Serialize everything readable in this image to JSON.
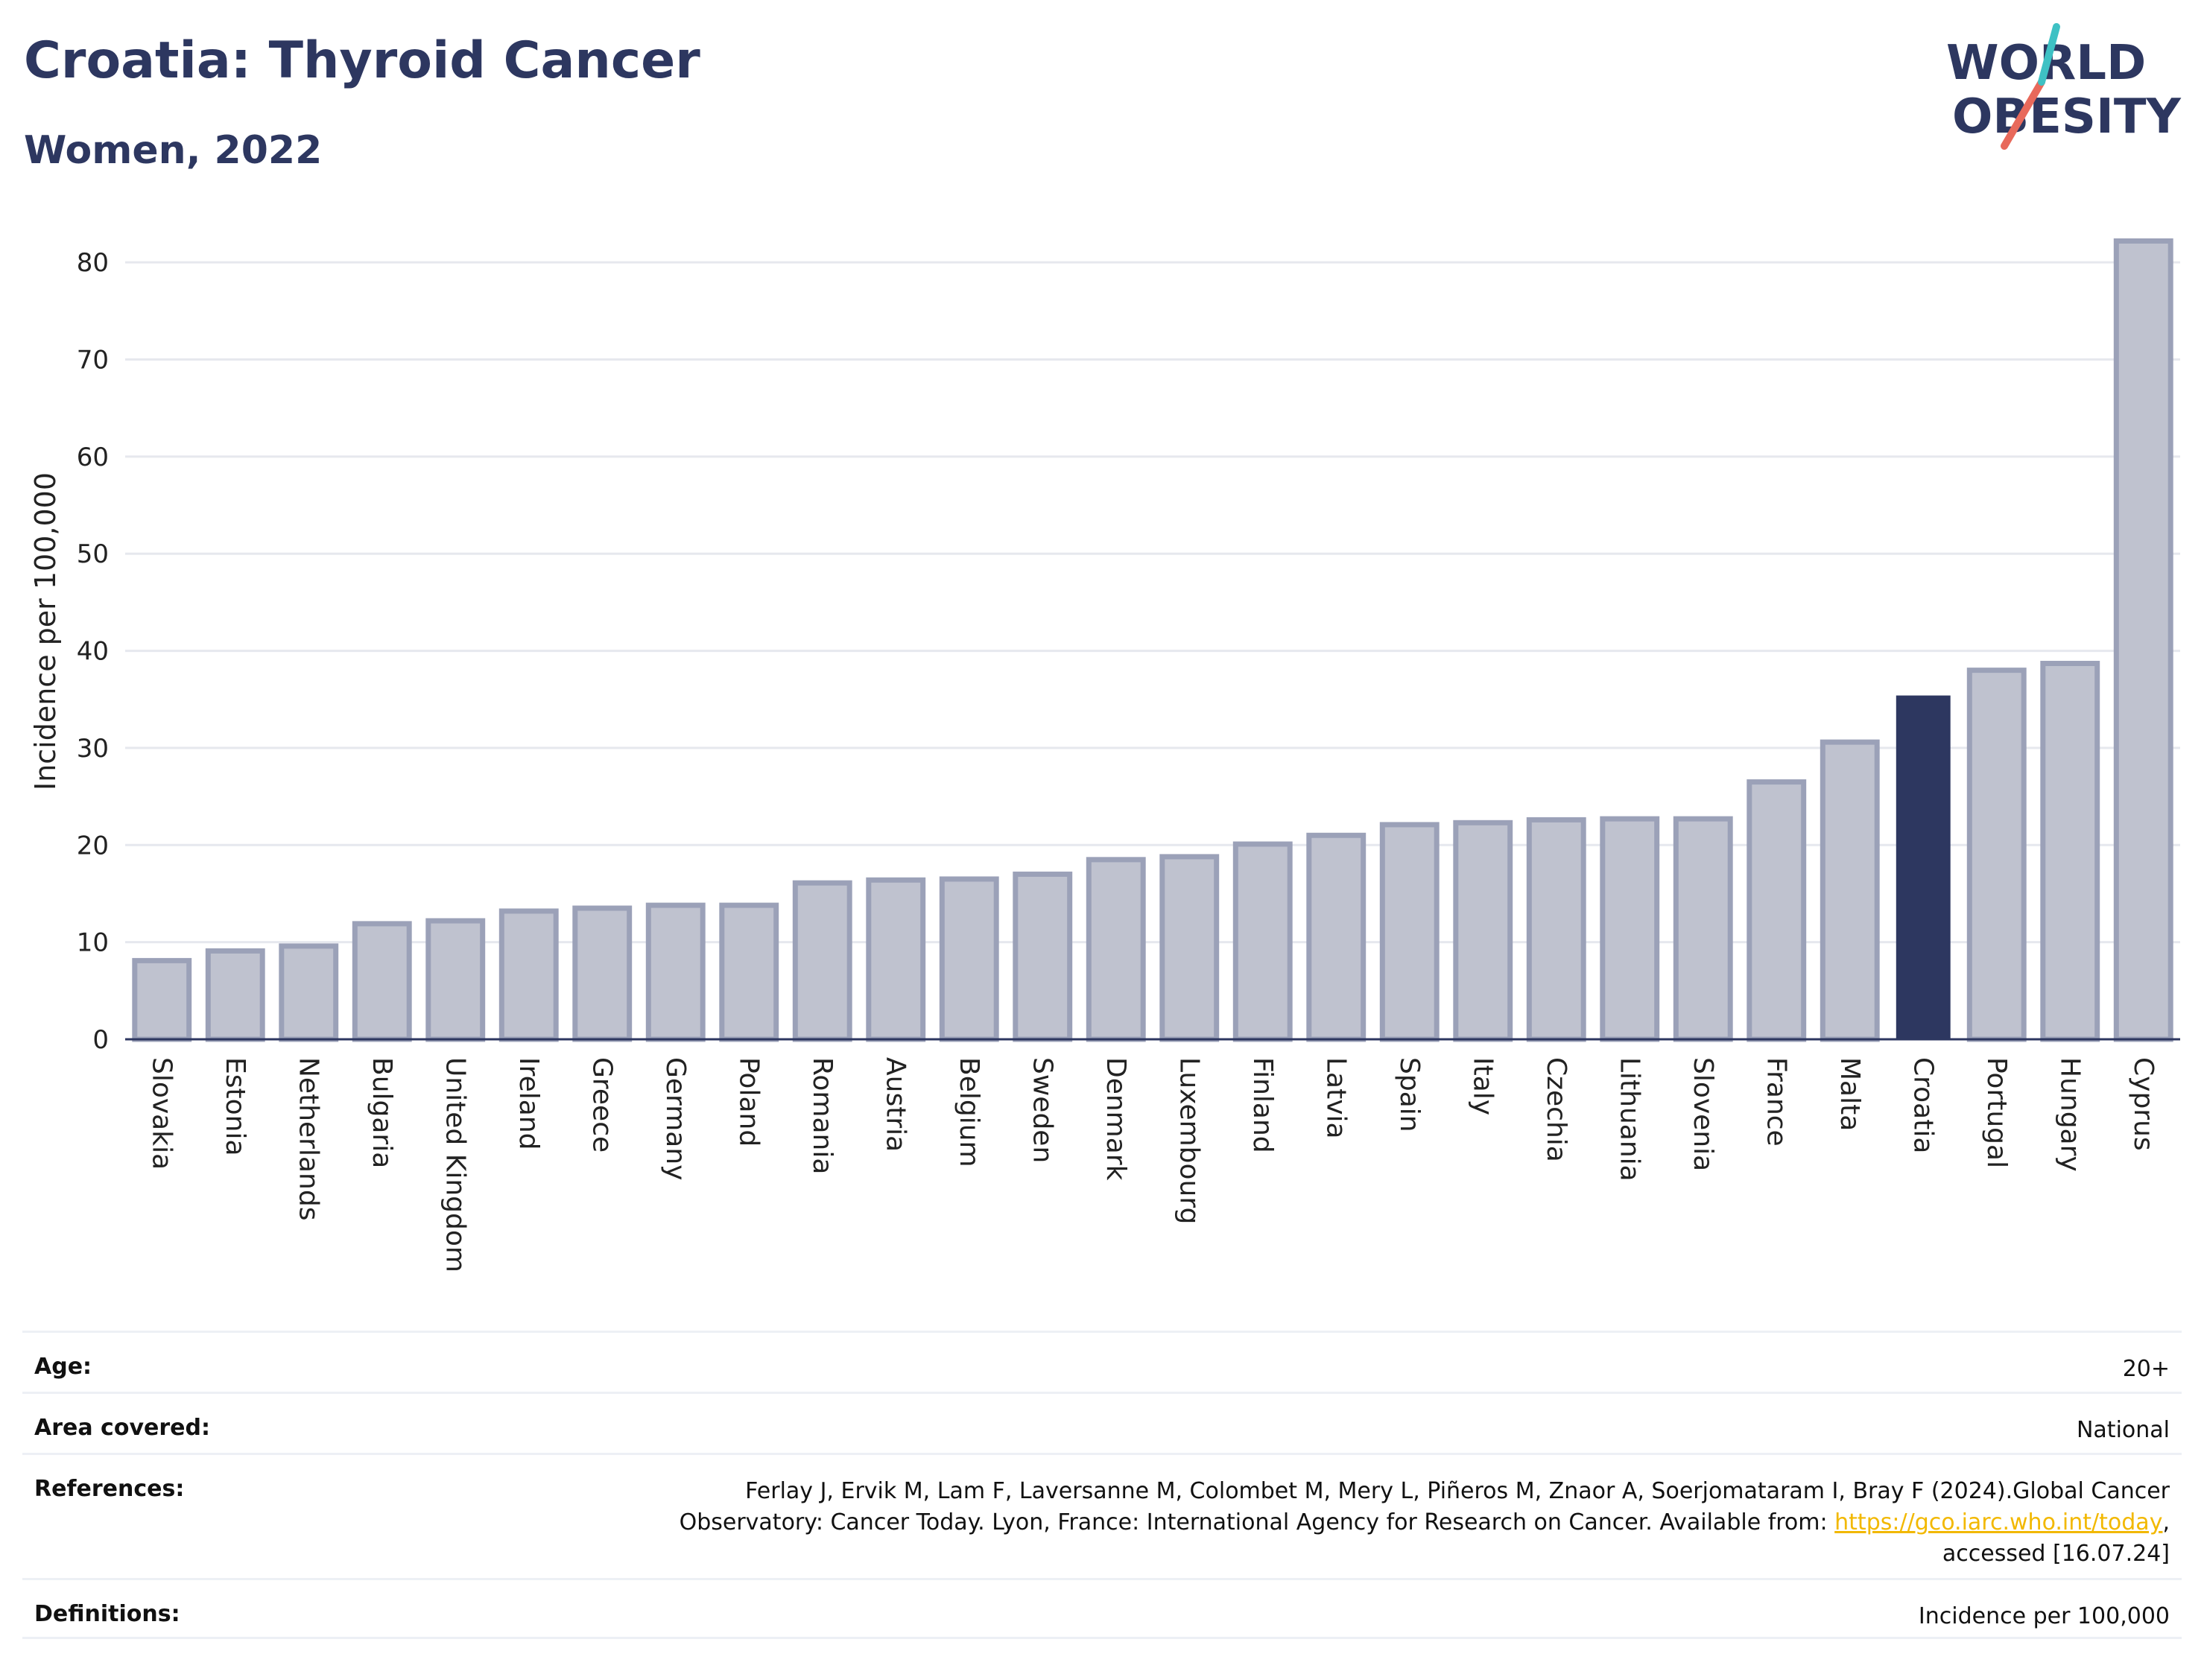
{
  "header": {
    "title": "Croatia: Thyroid Cancer",
    "subtitle": "Women, 2022"
  },
  "logo": {
    "line1": "WORLD",
    "line2": "OBESITY"
  },
  "colors": {
    "highlight": "#2d3760",
    "bar_fill": "#bfc2cf",
    "bar_stroke": "#9ba1b8",
    "text": "#2d3760",
    "link": "#f2b800",
    "grid": "#e6e8ee"
  },
  "chart_data": {
    "type": "bar",
    "ylabel": "Incidence per 100,000",
    "xlabel": "",
    "ylim": [
      0,
      84
    ],
    "yticks": [
      0,
      10,
      20,
      30,
      40,
      50,
      60,
      70,
      80
    ],
    "grid": true,
    "highlight": "Croatia",
    "categories": [
      "Slovakia",
      "Estonia",
      "Netherlands",
      "Bulgaria",
      "United Kingdom",
      "Ireland",
      "Greece",
      "Germany",
      "Poland",
      "Romania",
      "Austria",
      "Belgium",
      "Sweden",
      "Denmark",
      "Luxembourg",
      "Finland",
      "Latvia",
      "Spain",
      "Italy",
      "Czechia",
      "Lithuania",
      "Slovenia",
      "France",
      "Malta",
      "Croatia",
      "Portugal",
      "Hungary",
      "Cyprus"
    ],
    "values": [
      8.1,
      9.1,
      9.6,
      11.9,
      12.2,
      13.2,
      13.5,
      13.8,
      13.8,
      16.1,
      16.4,
      16.5,
      17.0,
      18.5,
      18.8,
      20.1,
      21.0,
      22.1,
      22.3,
      22.6,
      22.7,
      22.7,
      26.5,
      30.6,
      35.4,
      38.0,
      38.7,
      82.2
    ]
  },
  "meta": {
    "age": {
      "label": "Age:",
      "value": "20+"
    },
    "area": {
      "label": "Area covered:",
      "value": "National"
    },
    "references": {
      "label": "References:",
      "line1": "Ferlay J, Ervik M, Lam F, Laversanne M, Colombet M, Mery L, Piñeros M, Znaor A, Soerjomataram I, Bray F (2024).Global Cancer",
      "line2_prefix": "Observatory: Cancer Today. Lyon, France: International Agency for Research on Cancer. Available from: ",
      "link": "https://gco.iarc.who.int/today",
      "line2_suffix": ",",
      "line3": "accessed [16.07.24]"
    },
    "definitions": {
      "label": "Definitions:",
      "value": "Incidence per 100,000"
    }
  }
}
